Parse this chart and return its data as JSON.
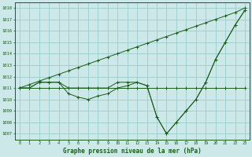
{
  "title": "Graphe pression niveau de la mer (hPa)",
  "background_color": "#cce8e8",
  "grid_color": "#99cccc",
  "line_color": "#1a5c1a",
  "ylim": [
    1006.5,
    1018.5
  ],
  "xlim": [
    -0.5,
    23.5
  ],
  "yticks": [
    1007,
    1008,
    1009,
    1010,
    1011,
    1012,
    1013,
    1014,
    1015,
    1016,
    1017,
    1018
  ],
  "xticks": [
    0,
    1,
    2,
    3,
    4,
    5,
    6,
    7,
    8,
    9,
    10,
    11,
    12,
    13,
    14,
    15,
    16,
    17,
    18,
    19,
    20,
    21,
    22,
    23
  ],
  "series": [
    {
      "x": [
        0,
        1,
        2,
        3,
        4,
        5,
        6,
        7,
        8,
        9,
        10,
        11,
        12,
        13,
        14,
        15,
        16,
        17,
        18,
        19,
        20,
        21,
        22,
        23
      ],
      "y": [
        1011,
        1011,
        1011,
        1011,
        1011,
        1011,
        1011,
        1011,
        1011,
        1011,
        1011,
        1011,
        1011,
        1011,
        1011,
        1011,
        1011,
        1011,
        1011,
        1011,
        1011,
        1011,
        1011,
        1011
      ]
    },
    {
      "x": [
        0,
        1,
        2,
        3,
        4,
        5,
        6,
        7,
        8,
        9,
        10,
        11,
        12,
        13,
        14,
        15,
        16,
        17,
        18,
        19,
        20,
        21,
        22,
        23
      ],
      "y": [
        1011,
        1011.3,
        1011.6,
        1011.9,
        1012.2,
        1012.5,
        1012.8,
        1013.1,
        1013.4,
        1013.7,
        1014.0,
        1014.3,
        1014.6,
        1014.9,
        1015.2,
        1015.5,
        1015.8,
        1016.1,
        1016.4,
        1016.7,
        1017.0,
        1017.3,
        1017.6,
        1018.0
      ]
    },
    {
      "x": [
        0,
        1,
        2,
        3,
        4,
        5,
        6,
        7,
        8,
        9,
        10,
        11,
        12,
        13,
        14,
        15,
        16,
        17,
        18,
        19,
        20,
        21,
        22,
        23
      ],
      "y": [
        1011,
        1011,
        1011.5,
        1011.5,
        1011.5,
        1011,
        1011,
        1011,
        1011,
        1011,
        1011.5,
        1011.5,
        1011.5,
        1011.2,
        1008.5,
        1007.0,
        1008.0,
        1009.0,
        1010.0,
        1011.5,
        1013.5,
        1015.0,
        1016.5,
        1017.8
      ]
    },
    {
      "x": [
        0,
        1,
        2,
        3,
        4,
        5,
        6,
        7,
        8,
        9,
        10,
        11,
        12,
        13,
        14,
        15,
        16,
        17,
        18,
        19,
        20,
        21,
        22,
        23
      ],
      "y": [
        1011,
        1011,
        1011.5,
        1011.5,
        1011.5,
        1010.5,
        1010.2,
        1010.0,
        1010.3,
        1010.5,
        1011.0,
        1011.2,
        1011.5,
        1011.2,
        1008.5,
        1007.0,
        1008.0,
        1009.0,
        1010.0,
        1011.5,
        1013.5,
        1015.0,
        1016.5,
        1017.8
      ]
    }
  ]
}
